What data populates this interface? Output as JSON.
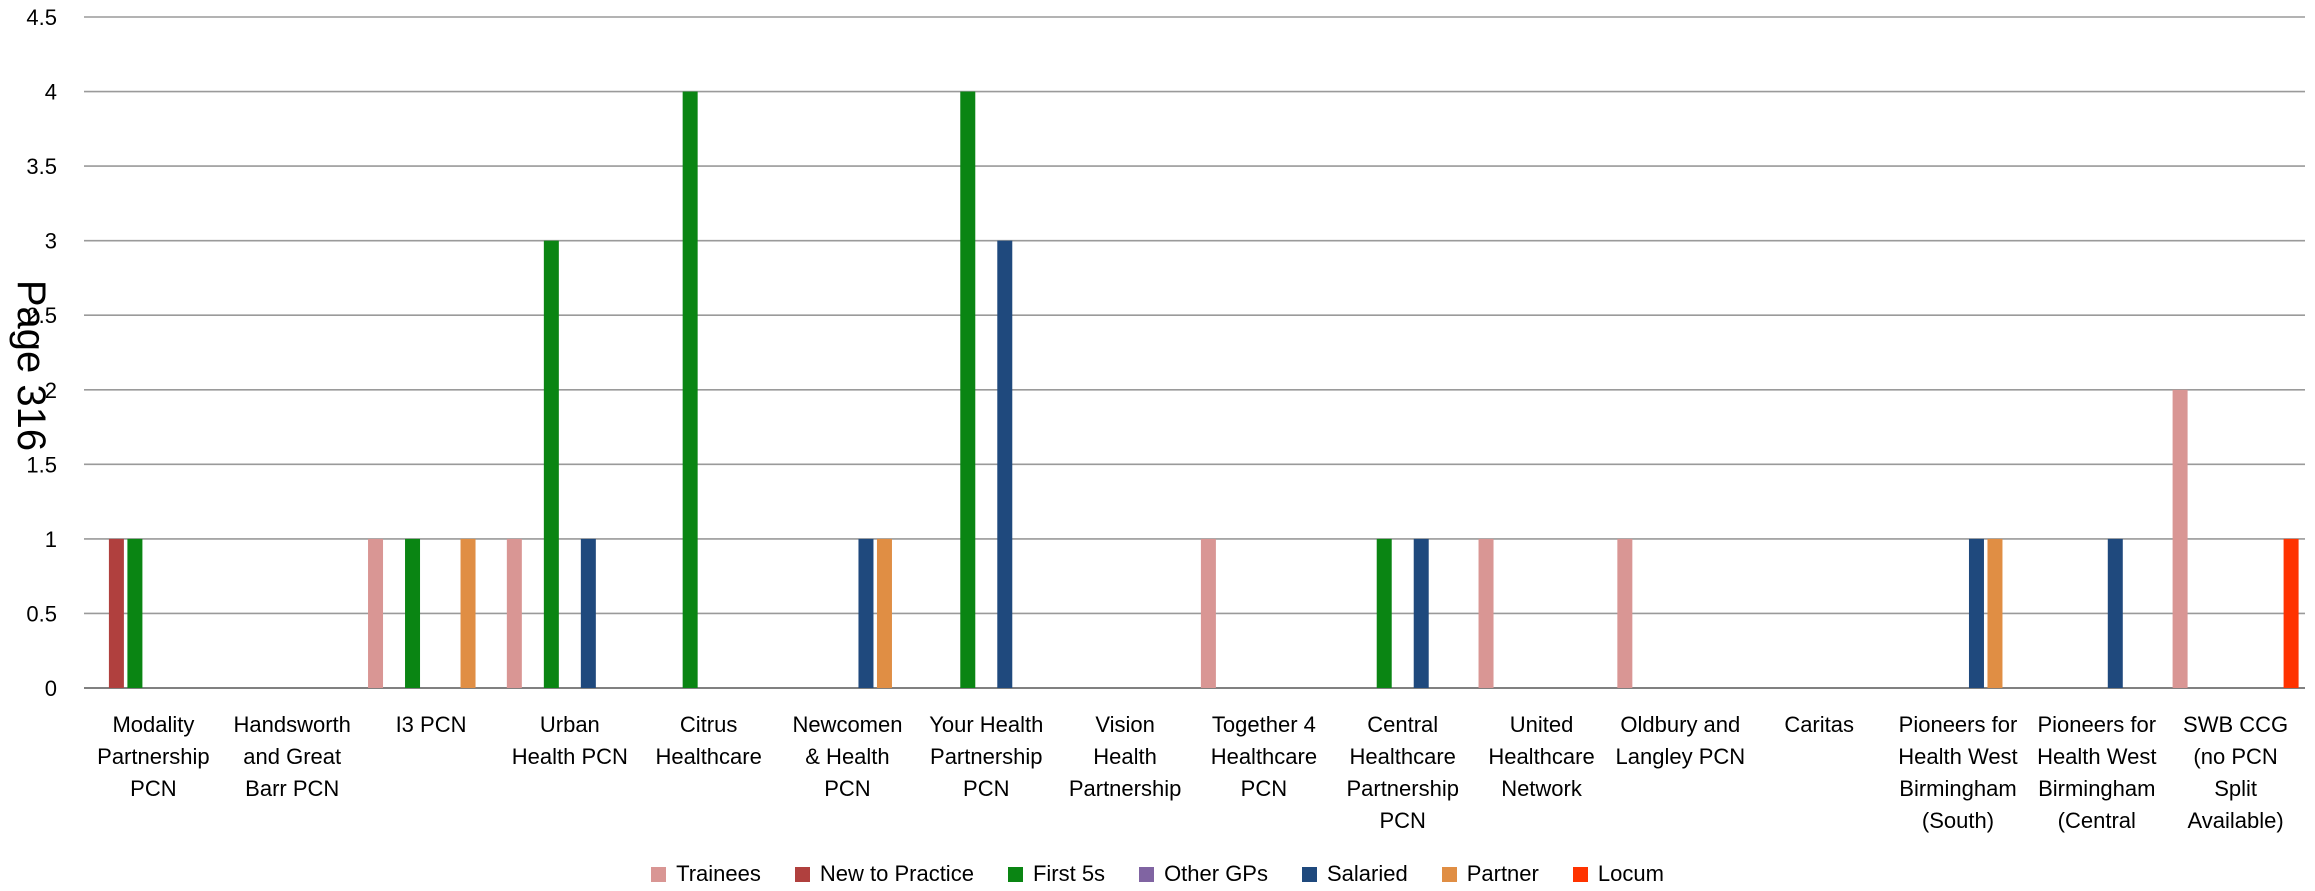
{
  "page_stamp": "Page 316",
  "chart_data": {
    "type": "bar",
    "title": "",
    "xlabel": "",
    "ylabel": "",
    "ylim": [
      0,
      4.5
    ],
    "yticks": [
      0,
      0.5,
      1,
      1.5,
      2,
      2.5,
      3,
      3.5,
      4,
      4.5
    ],
    "ytick_labels": [
      "0",
      "0.5",
      "1",
      "1.5",
      "2",
      "2.5",
      "3",
      "3.5",
      "4",
      "4.5"
    ],
    "grid": true,
    "legend_position": "bottom",
    "categories": [
      [
        "Modality",
        "Partnership",
        "PCN"
      ],
      [
        "Handsworth",
        "and Great",
        "Barr PCN"
      ],
      [
        "I3 PCN"
      ],
      [
        "Urban",
        "Health PCN"
      ],
      [
        "Citrus",
        "Healthcare"
      ],
      [
        "Newcomen",
        "& Health",
        "PCN"
      ],
      [
        "Your Health",
        "Partnership",
        "PCN"
      ],
      [
        "Vision",
        "Health",
        "Partnership"
      ],
      [
        "Together 4",
        "Healthcare",
        "PCN"
      ],
      [
        "Central",
        "Healthcare",
        "Partnership",
        "PCN"
      ],
      [
        "United",
        "Healthcare",
        "Network"
      ],
      [
        "Oldbury and",
        "Langley PCN"
      ],
      [
        "Caritas"
      ],
      [
        "Pioneers for",
        "Health West",
        "Birmingham",
        "(South)"
      ],
      [
        "Pioneers for",
        "Health West",
        "Birmingham",
        "(Central"
      ],
      [
        "SWB CCG",
        "(no PCN",
        "Split",
        "Available)"
      ]
    ],
    "series": [
      {
        "name": "Trainees",
        "color": "#D99694",
        "values": [
          0,
          0,
          1,
          1,
          0,
          0,
          0,
          0,
          1,
          0,
          1,
          1,
          0,
          0,
          0,
          2
        ]
      },
      {
        "name": "New to Practice",
        "color": "#B0403E",
        "values": [
          1,
          0,
          0,
          0,
          0,
          0,
          0,
          0,
          0,
          0,
          0,
          0,
          0,
          0,
          0,
          0
        ]
      },
      {
        "name": "First 5s",
        "color": "#0A8513",
        "values": [
          1,
          0,
          1,
          3,
          4,
          0,
          4,
          0,
          0,
          1,
          0,
          0,
          0,
          0,
          0,
          0
        ]
      },
      {
        "name": "Other GPs",
        "color": "#8064A2",
        "values": [
          0,
          0,
          0,
          0,
          0,
          0,
          0,
          0,
          0,
          0,
          0,
          0,
          0,
          0,
          0,
          0
        ]
      },
      {
        "name": "Salaried",
        "color": "#1F497D",
        "values": [
          0,
          0,
          0,
          1,
          0,
          1,
          3,
          0,
          0,
          1,
          0,
          0,
          0,
          1,
          1,
          0
        ]
      },
      {
        "name": "Partner",
        "color": "#E08E44",
        "values": [
          0,
          0,
          1,
          0,
          0,
          1,
          0,
          0,
          0,
          0,
          0,
          0,
          0,
          1,
          0,
          0
        ]
      },
      {
        "name": "Locum",
        "color": "#FF3300",
        "values": [
          0,
          0,
          0,
          0,
          0,
          0,
          0,
          0,
          0,
          0,
          0,
          0,
          0,
          0,
          0,
          1
        ]
      }
    ]
  }
}
